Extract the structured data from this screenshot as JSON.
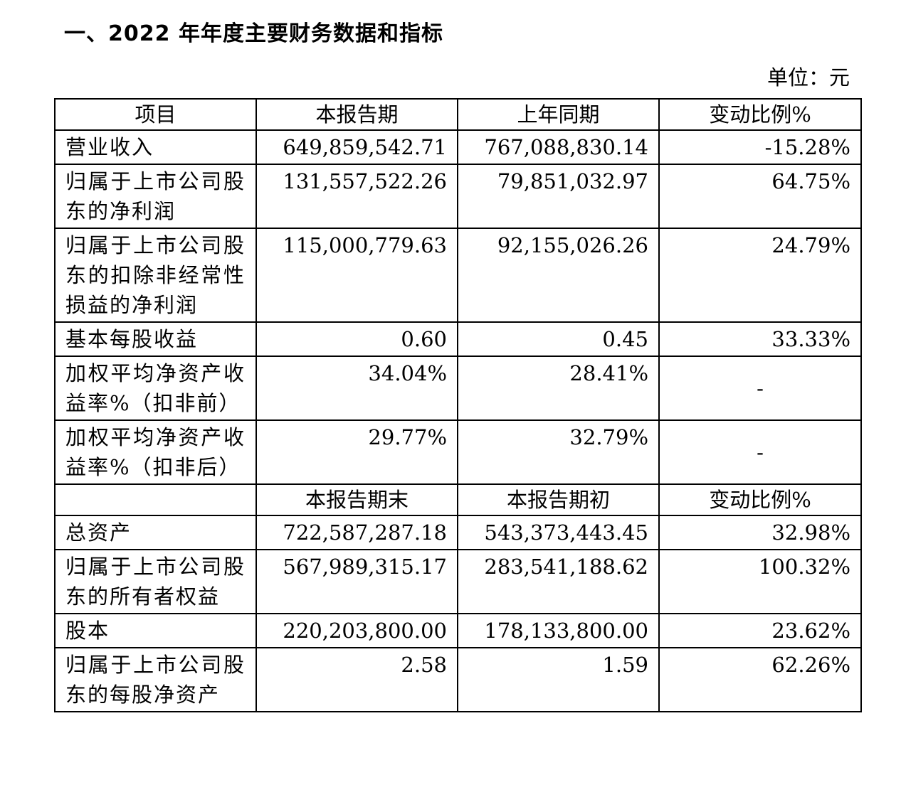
{
  "title": "一、2022 年年度主要财务数据和指标",
  "unit": "单位：元",
  "header1": [
    "项目",
    "本报告期",
    "上年同期",
    "变动比例%"
  ],
  "header2": [
    "",
    "本报告期末",
    "本报告期初",
    "变动比例%"
  ],
  "rows1": [
    {
      "item": "营业收入",
      "current": "649,859,542.71",
      "previous": "767,088,830.14",
      "change": "-15.28%"
    },
    {
      "item": "归属于上市公司股东的净利润",
      "current": "131,557,522.26",
      "previous": "79,851,032.97",
      "change": "64.75%"
    },
    {
      "item": "归属于上市公司股东的扣除非经常性损益的净利润",
      "current": "115,000,779.63",
      "previous": "92,155,026.26",
      "change": "24.79%"
    },
    {
      "item": "基本每股收益",
      "current": "0.60",
      "previous": "0.45",
      "change": "33.33%"
    },
    {
      "item": "加权平均净资产收益率%（扣非前）",
      "current": "34.04%",
      "previous": "28.41%",
      "change": "-"
    },
    {
      "item": "加权平均净资产收益率%（扣非后）",
      "current": "29.77%",
      "previous": "32.79%",
      "change": "-"
    }
  ],
  "rows2": [
    {
      "item": "总资产",
      "current": "722,587,287.18",
      "previous": "543,373,443.45",
      "change": "32.98%"
    },
    {
      "item": "归属于上市公司股东的所有者权益",
      "current": "567,989,315.17",
      "previous": "283,541,188.62",
      "change": "100.32%"
    },
    {
      "item": "股本",
      "current": "220,203,800.00",
      "previous": "178,133,800.00",
      "change": "23.62%"
    },
    {
      "item": "归属于上市公司股东的每股净资产",
      "current": "2.58",
      "previous": "1.59",
      "change": "62.26%"
    }
  ]
}
